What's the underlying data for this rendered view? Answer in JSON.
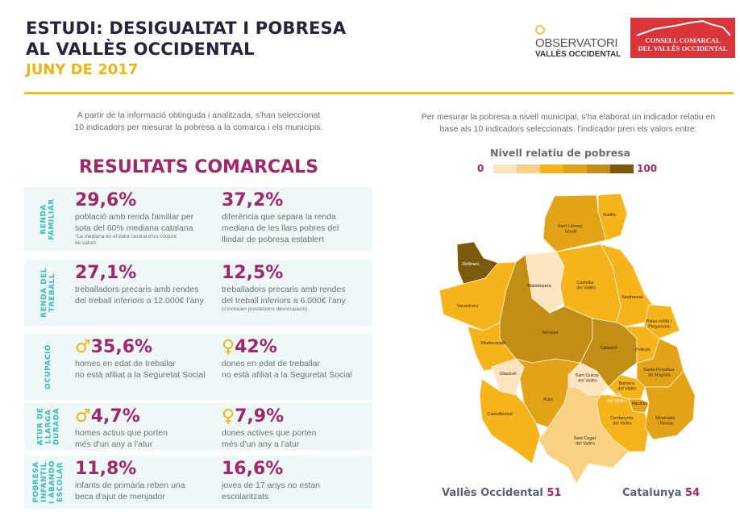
{
  "header": {
    "title_line1": "ESTUDI: DESIGUALTAT I POBRESA",
    "title_line2": "AL VALLÈS OCCIDENTAL",
    "date": "JUNY DE 2017",
    "logo_observatori": {
      "line1": "OBSERVATORI",
      "line2": "VALLÈS OCCIDENTAL"
    },
    "logo_consell": {
      "line1": "CONSELL COMARCAL",
      "line2": "DEL VALLÈS OCCIDENTAL"
    }
  },
  "left": {
    "intro_line1": "A partir de la informació obtinguda i analitzada, s'han seleccionat",
    "intro_line2": "10 indicadors per mesurar la pobresa a la comarca i els municipis.",
    "section_title": "RESULTATS COMARCALS",
    "panels": [
      {
        "label": "RENDA\nFAMILIAR",
        "stats": [
          {
            "value": "29,6%",
            "desc1": "població amb renda familiar per",
            "desc2": "sota del 60% mediana catalana",
            "note1": "*La mediana és el valor central d'un conjunt",
            "note2": "de valors"
          },
          {
            "value": "37,2%",
            "desc1": "diferència que separa la renda",
            "desc2": "mediana de les llars pobres del",
            "desc3": "llindar de pobresa establert"
          }
        ]
      },
      {
        "label": "RENDA DEL\nTREBALL",
        "stats": [
          {
            "value": "27,1%",
            "desc1": "treballadors precaris amb rendes",
            "desc2": "del treball inferiors a 12.000€ l'any"
          },
          {
            "value": "12,5%",
            "desc1": "treballadors precaris amb rendes",
            "desc2": "del treball inferiors a 6.000€ l'any",
            "note1": "(s'inclouen prestacions desocupació)"
          }
        ]
      },
      {
        "label": "OCUPACIÓ",
        "stats": [
          {
            "symbol": "♂",
            "value": "35,6%",
            "desc1": "homes en edat de treballar",
            "desc2": "no està afiliat a la Seguretat Social"
          },
          {
            "symbol": "♀",
            "value": "42%",
            "desc1": "dones en edat de treballar",
            "desc2": "no està afiliat a la Seguretat Social"
          }
        ]
      },
      {
        "label": "ATUR DE\nLLARGA\nDURADA",
        "stats": [
          {
            "symbol": "♂",
            "value": "4,7%",
            "desc1": "homes actius que porten",
            "desc2": "més d'un any a l'atur"
          },
          {
            "symbol": "♀",
            "value": "7,9%",
            "desc1": "dones actives que porten",
            "desc2": "més d'un any a l'atur"
          }
        ]
      },
      {
        "label": "POBRESA\nINFANTIL\nI ABANDÓ\nESCOLAR",
        "stats": [
          {
            "value": "11,8%",
            "desc1": "infants de primària reben una",
            "desc2": "beca d'ajut de menjador"
          },
          {
            "value": "16,6%",
            "desc1": "joves de 17 anys no estan",
            "desc2": "escolaritzats"
          }
        ]
      }
    ]
  },
  "right": {
    "intro_line1": "Per mesurar la pobresa a nivell municipal, s'ha elaborat un indicador relatiu en",
    "intro_line2": "base als 10 indicadors seleccionats. l'indicador pren els valors entre:",
    "legend": {
      "title": "Nivell relatiu de pobresa",
      "min": "0",
      "max": "100",
      "colors": [
        "#fde6bf",
        "#f9d184",
        "#f5b41c",
        "#e3a318",
        "#c38e16",
        "#7c5a0d"
      ]
    },
    "municipalities": [
      {
        "name": "Gallifa",
        "level": 3
      },
      {
        "name": "Sant Llorenç Savall",
        "level": 4
      },
      {
        "name": "Rellinars",
        "level": 6
      },
      {
        "name": "Matadepera",
        "level": 1
      },
      {
        "name": "Castellar del Vallès",
        "level": 3
      },
      {
        "name": "Sentmenat",
        "level": 3
      },
      {
        "name": "Palau-solità i Plegamans",
        "level": 3
      },
      {
        "name": "Vacarisses",
        "level": 3
      },
      {
        "name": "Terrassa",
        "level": 5
      },
      {
        "name": "Viladecavalls",
        "level": 3
      },
      {
        "name": "Sabadell",
        "level": 5
      },
      {
        "name": "Polinyà",
        "level": 3
      },
      {
        "name": "Santa Perpètua de Mogoda",
        "level": 4
      },
      {
        "name": "Ullastrell",
        "level": 1
      },
      {
        "name": "Sant Quirze del Vallès",
        "level": 1
      },
      {
        "name": "Barberà del Vallès",
        "level": 3
      },
      {
        "name": "Badia del Vallès",
        "level": 6
      },
      {
        "name": "Ripollet",
        "level": 4
      },
      {
        "name": "Rubí",
        "level": 4
      },
      {
        "name": "Castellbisbal",
        "level": 3
      },
      {
        "name": "Cerdanyola del Vallès",
        "level": 3
      },
      {
        "name": "Montcada i Reixac",
        "level": 4
      },
      {
        "name": "Sant Cugat del Vallès",
        "level": 2
      }
    ],
    "summary": [
      {
        "label": "Vallès Occidental",
        "value": "51"
      },
      {
        "label": "Catalunya",
        "value": "54"
      }
    ]
  }
}
